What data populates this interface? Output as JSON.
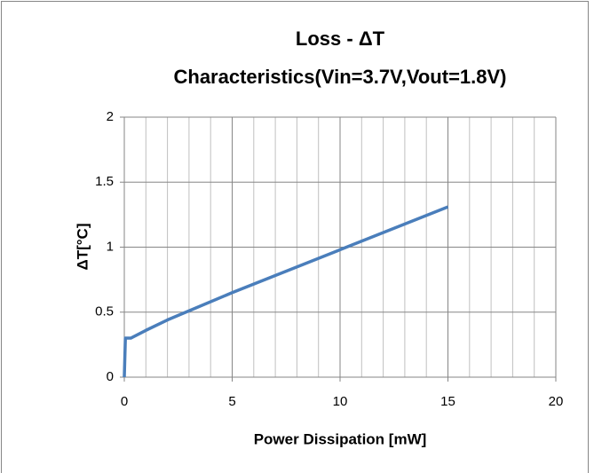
{
  "chart_data": {
    "type": "line",
    "title": [
      "Loss - ΔT",
      "Characteristics(Vin=3.7V,Vout=1.8V)"
    ],
    "x_label": "Power Dissipation [mW]",
    "y_label": "ΔT[°C]",
    "x": [
      0,
      0.05,
      0.3,
      1,
      2,
      3,
      5,
      10,
      15
    ],
    "series": [
      {
        "name": "ΔT",
        "color": "#4a7ebb",
        "values": [
          0,
          0.3,
          0.3,
          0.36,
          0.44,
          0.51,
          0.65,
          0.98,
          1.31
        ]
      }
    ],
    "xlim": [
      0,
      20
    ],
    "xticks": [
      0,
      5,
      10,
      15,
      20
    ],
    "x_minor_ticks": [
      1,
      2,
      3,
      4,
      6,
      7,
      8,
      9,
      11,
      12,
      13,
      14,
      16,
      17,
      18,
      19
    ],
    "ylim": [
      0,
      2
    ],
    "yticks": [
      0,
      0.5,
      1,
      1.5,
      2
    ],
    "grid": true,
    "legend": false
  }
}
